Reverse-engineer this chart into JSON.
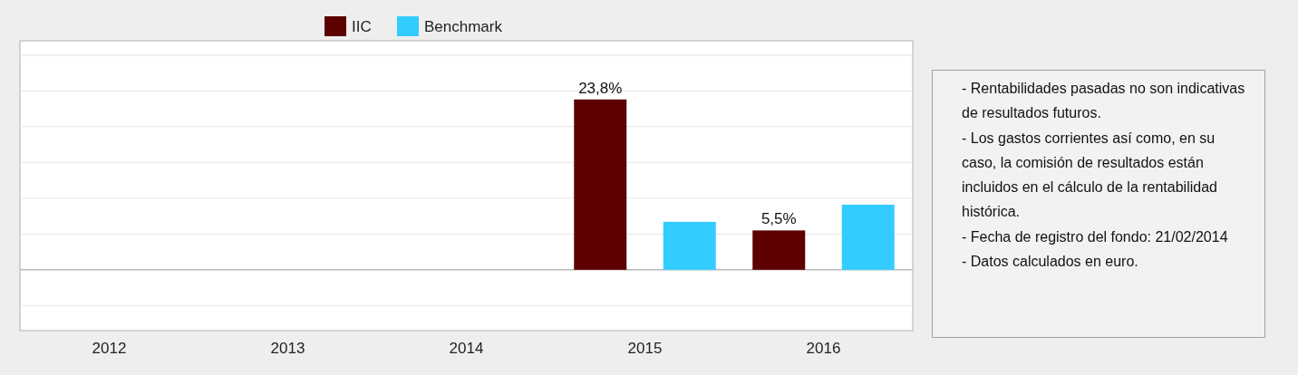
{
  "chart_data": {
    "type": "bar",
    "categories": [
      "2012",
      "2013",
      "2014",
      "2015",
      "2016"
    ],
    "series": [
      {
        "name": "IIC",
        "color": "#5c0000",
        "values": [
          null,
          null,
          null,
          23.8,
          5.5
        ],
        "value_labels": [
          null,
          null,
          null,
          "23,8%",
          "5,5%"
        ]
      },
      {
        "name": "Benchmark",
        "color": "#33ccff",
        "values": [
          null,
          null,
          null,
          6.7,
          9.1
        ]
      }
    ],
    "ylim": [
      -8.5,
      32
    ],
    "yticks": [
      {
        "value": -5,
        "label": null
      },
      {
        "value": 0,
        "label": null
      },
      {
        "value": 5,
        "label": null
      },
      {
        "value": 10,
        "label": null
      },
      {
        "value": 15,
        "label": null
      },
      {
        "value": 20,
        "label": null
      },
      {
        "value": 25,
        "label": null
      },
      {
        "value": 30,
        "label": null
      }
    ],
    "tick_labels": "x",
    "grid": "y",
    "legend": "top",
    "annotations": [
      "- Rentabilidades pasadas no son indicativas de resultados futuros.",
      "- Los gastos corrientes así como, en su caso, la comisión de resultados están incluidos en el cálculo de la rentabilidad histórica.",
      "- Fecha de registro del fondo: 21/02/2014",
      "- Datos calculados en euro."
    ]
  }
}
